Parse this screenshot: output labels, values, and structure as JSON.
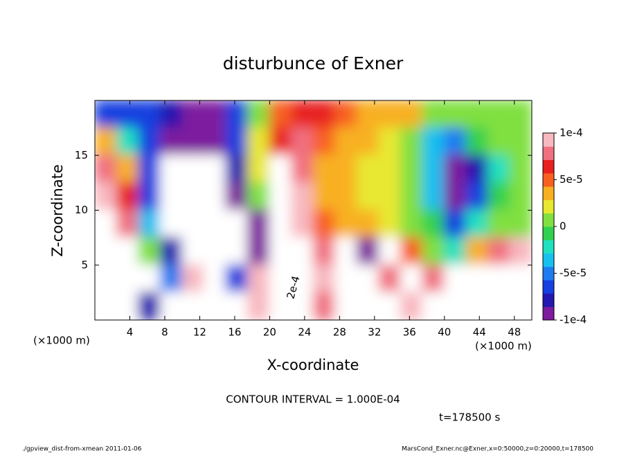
{
  "chart_data": {
    "type": "contour",
    "title": "disturbunce of Exner",
    "x_label": "X-coordinate",
    "y_label": "Z-coordinate",
    "x_unit": "(×1000 m)",
    "y_unit": "(×1000 m)",
    "contour_interval": "CONTOUR INTERVAL = 1.000E-04",
    "time_label": "t=178500 s",
    "footer_left": "./gpview_dist-from-xmean  2011-01-06",
    "footer_right": "MarsCond_Exner.nc@Exner,x=0:50000,z=0:20000,t=178500",
    "annotations": [
      "2e-4"
    ],
    "xlim": [
      0,
      50
    ],
    "ylim": [
      0,
      20
    ],
    "xticks": [
      4,
      8,
      12,
      16,
      20,
      24,
      28,
      32,
      36,
      40,
      44,
      48
    ],
    "yticks": [
      5,
      10,
      15
    ],
    "clim": [
      -0.0001,
      0.0001
    ],
    "cticks": [
      {
        "value": 0.0001,
        "label": "1e-4"
      },
      {
        "value": 5e-05,
        "label": "5e-5"
      },
      0,
      {
        "value": -5e-05,
        "label": "-5e-5"
      },
      {
        "value": -0.0001,
        "label": "-1e-4"
      }
    ],
    "colors": [
      "#7d1a9e",
      "#2318b0",
      "#1640e0",
      "#1e7cf0",
      "#18c0f0",
      "#20e0c0",
      "#30d050",
      "#80e040",
      "#e8e830",
      "#f8b020",
      "#f86020",
      "#e82020",
      "#f07080",
      "#f8b8c0"
    ],
    "out_of_range_color": "#ffffff",
    "x": [
      1.25,
      3.75,
      6.25,
      8.75,
      11.25,
      13.75,
      16.25,
      18.75,
      21.25,
      23.75,
      26.25,
      28.75,
      31.25,
      33.75,
      36.25,
      38.75,
      41.25,
      43.75,
      46.25,
      48.75
    ],
    "y": [
      18.75,
      16.25,
      13.75,
      11.25,
      8.75,
      6.25,
      3.75,
      1.25
    ],
    "z": [
      [
        -7e-05,
        -7e-05,
        -6e-05,
        -8e-05,
        -9e-05,
        -9e-05,
        -6e-05,
        1e-05,
        5e-05,
        6e-05,
        6e-05,
        5e-05,
        4e-05,
        3e-05,
        3e-05,
        1e-05,
        0,
        0,
        0,
        1e-05
      ],
      [
        4e-05,
        -2e-05,
        -6e-05,
        -9e-05,
        -0.0001,
        -9e-05,
        -6e-05,
        2e-05,
        7e-05,
        8e-05,
        5e-05,
        3e-05,
        3e-05,
        2e-05,
        1e-05,
        -3e-05,
        -5e-05,
        -1e-05,
        0,
        1e-05
      ],
      [
        8e-05,
        3e-05,
        -7e-05,
        -0.00015,
        -0.00015,
        -0.00012,
        -8e-05,
        2e-05,
        0.00015,
        8e-05,
        3e-05,
        3e-05,
        2e-05,
        2e-05,
        0,
        -4e-05,
        -9e-05,
        -8e-05,
        -2e-05,
        1e-05
      ],
      [
        0.0001,
        6e-05,
        -6e-05,
        -0.00015,
        -0.00015,
        -0.00015,
        -9e-05,
        0,
        0.00015,
        9e-05,
        4e-05,
        3e-05,
        2e-05,
        2e-05,
        1e-05,
        -3e-05,
        -9e-05,
        -6e-05,
        -1e-05,
        1e-05
      ],
      [
        0.00015,
        8e-05,
        -4e-05,
        -0.00015,
        -0.00015,
        -0.00015,
        -0.00015,
        -9e-05,
        0.00015,
        0.0001,
        5e-05,
        4e-05,
        3e-05,
        2e-05,
        1e-05,
        -1e-05,
        -6e-05,
        -2e-05,
        0,
        1e-05
      ],
      [
        0.00015,
        0.00015,
        0,
        -8e-05,
        -0.00015,
        -0.00015,
        -0.00015,
        -9e-05,
        0.00015,
        0.00015,
        8e-05,
        0.00015,
        -9e-05,
        -0.00012,
        5e-05,
        1e-05,
        -2e-05,
        3e-05,
        8e-05,
        0.0001
      ],
      [
        0.00015,
        0.00015,
        0.00015,
        -5e-05,
        9e-05,
        0.00015,
        -6e-05,
        0.0001,
        0.00015,
        0.00015,
        9e-05,
        0.00015,
        -0.00015,
        8e-05,
        0.00015,
        8e-05,
        0.00015,
        0.00015,
        -0.00015,
        -0.00015
      ],
      [
        0.00015,
        0.00015,
        -8e-05,
        0.00015,
        0.00015,
        0.00015,
        0.00015,
        9e-05,
        0.00015,
        0.00015,
        8e-05,
        0.00015,
        0.00015,
        0.00015,
        9e-05,
        0.00015,
        0.00015,
        0.00015,
        -0.00015,
        -0.00015
      ]
    ]
  }
}
